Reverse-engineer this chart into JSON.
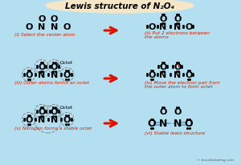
{
  "title": "Lewis structure of N₂O₄",
  "bg_color": "#b3dff0",
  "title_bg": "#f5e6c8",
  "arrow_color": "#dd1100",
  "text_color_red": "#cc2200",
  "bond_color": "#5599cc",
  "watermark": "© knordslearing.com",
  "label_i": "(i) Select the center atom",
  "label_ii": "(ii) Put 2 electrons between\nthe atoms",
  "label_iii": "(iii) Outer atoms forms an octet",
  "label_iv": "(iv) Move the electron pair from\nthe outer atom to form octet",
  "label_v": "(v) Nitrogen forms a stable octet",
  "label_vi": "(vi) Stable lewis structure"
}
